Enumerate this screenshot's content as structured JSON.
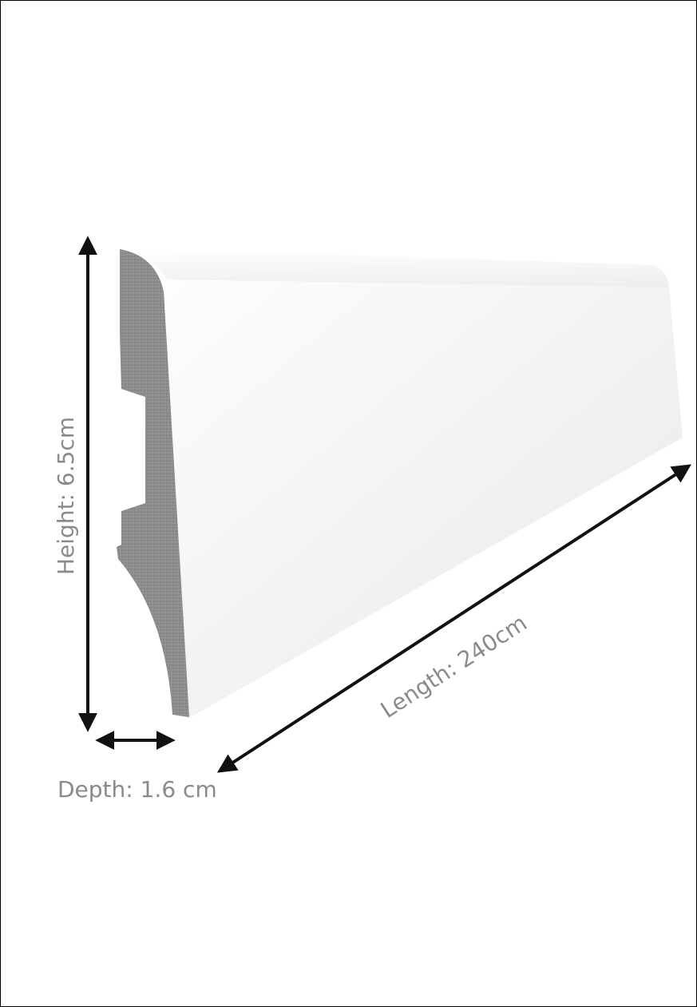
{
  "dimensions": {
    "height_label": "Height: 6.5cm",
    "length_label": "Length: 240cm",
    "depth_label": "Depth: 1.6 cm"
  },
  "colors": {
    "face": "#f2f2f2",
    "profile": "#8c8c8c",
    "arrow": "#111111",
    "label": "#8a8a8a",
    "border": "#000000"
  }
}
